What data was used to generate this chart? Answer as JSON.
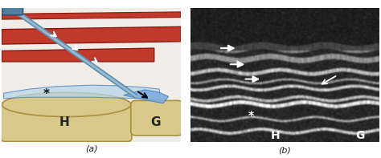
{
  "fig_width": 4.74,
  "fig_height": 1.97,
  "dpi": 100,
  "background_color": "#ffffff",
  "label_a": "(a)",
  "label_b": "(b)",
  "label_fontsize": 8,
  "label_color": "#222222",
  "panel_a": {
    "bg_color": "#f0ede8",
    "muscle_red": "#c0392b",
    "muscle_dark_red": "#8b1a10",
    "muscle_light_red": "#e05040",
    "bursa_blue": "#b8d4e8",
    "bursa_blue2": "#7aace0",
    "bursa_dark": "#4a80b8",
    "humerus_fill": "#d8c88a",
    "humerus_edge": "#a89040",
    "glenoid_fill": "#d8c88a",
    "glenoid_edge": "#a89040",
    "needle_body": "#6090b0",
    "needle_light": "#c0d8e8",
    "needle_handle": "#5080a0",
    "H_label": "H",
    "G_label": "G",
    "star_label": "*",
    "label_fontsize": 11
  },
  "panel_b": {
    "H_label": "H",
    "G_label": "G",
    "star_label": "*",
    "label_fontsize": 10,
    "label_color": "#ffffff"
  }
}
